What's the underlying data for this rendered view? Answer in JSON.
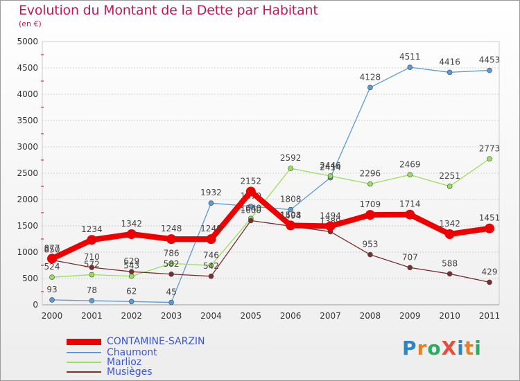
{
  "title": "Evolution du Montant de la Dette par Habitant",
  "unit": "(en €)",
  "logo": {
    "text": "ProXiti",
    "letters": [
      {
        "ch": "P",
        "color": "#2e86c1"
      },
      {
        "ch": "r",
        "color": "#e67e22"
      },
      {
        "ch": "o",
        "color": "#27ae60"
      },
      {
        "ch": "X",
        "color": "#e74c3c"
      },
      {
        "ch": "i",
        "color": "#2e86c1"
      },
      {
        "ch": "t",
        "color": "#e67e22"
      },
      {
        "ch": "i",
        "color": "#27ae60"
      }
    ]
  },
  "chart_data": {
    "type": "line",
    "title": "Evolution du Montant de la Dette par Habitant",
    "xlabel": "",
    "ylabel": "(en €)",
    "ylim": [
      0,
      5000
    ],
    "yticks": [
      0,
      500,
      1000,
      1500,
      2000,
      2500,
      3000,
      3500,
      4000,
      4500,
      5000
    ],
    "grid": true,
    "legend": "bottom-left",
    "x": [
      "2000",
      "2001",
      "2002",
      "2003",
      "2004",
      "2005",
      "2006",
      "2007",
      "2008",
      "2009",
      "2010",
      "2011"
    ],
    "series": [
      {
        "name": "CONTAMINE-SARZIN",
        "color": "#ee0000",
        "values": [
          877,
          1234,
          1342,
          1248,
          1248,
          2152,
          1508,
          1494,
          1709,
          1714,
          1342,
          1451
        ]
      },
      {
        "name": "Chaumont",
        "color": "#5b9bd5",
        "values": [
          93,
          78,
          62,
          45,
          1932,
          1870,
          1808,
          2414,
          4128,
          4511,
          4416,
          4453
        ]
      },
      {
        "name": "Marlioz",
        "color": "#99e05a",
        "values": [
          524,
          572,
          543,
          786,
          746,
          1640,
          2592,
          2446,
          2296,
          2469,
          2251,
          2773
        ]
      },
      {
        "name": "Musièges",
        "color": "#7a2e2e",
        "values": [
          850,
          710,
          629,
          582,
          542,
          1600,
          1494,
          1389,
          953,
          707,
          588,
          429
        ]
      }
    ]
  }
}
